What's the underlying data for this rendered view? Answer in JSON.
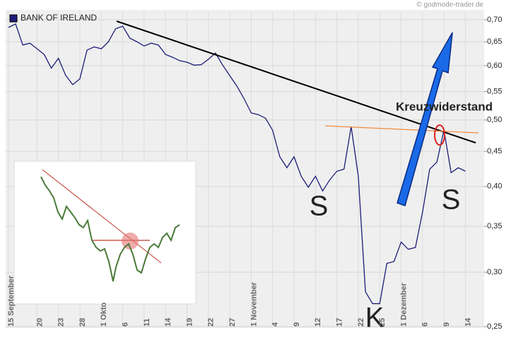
{
  "chart_data": {
    "type": "line",
    "source": "© godmode-trader.de",
    "categories": [
      "15 September",
      null,
      null,
      null,
      "20",
      null,
      null,
      "23",
      null,
      null,
      "28",
      null,
      null,
      "1 Okto",
      null,
      null,
      "6",
      null,
      null,
      "11",
      null,
      null,
      "14",
      null,
      null,
      "19",
      null,
      null,
      "22",
      null,
      null,
      "27",
      null,
      null,
      "1 November",
      null,
      null,
      "4",
      null,
      null,
      "9",
      null,
      null,
      "12",
      null,
      null,
      "17",
      null,
      null,
      "22",
      null,
      null,
      "25",
      null,
      null,
      "1 Dezember",
      null,
      null,
      "6",
      null,
      null,
      "9",
      null,
      null,
      "14"
    ],
    "series": [
      {
        "name": "BANK OF IRELAND",
        "color": "#1c1c78",
        "values": [
          0.682,
          0.69,
          0.643,
          0.647,
          0.635,
          0.623,
          0.595,
          0.615,
          0.581,
          0.563,
          0.574,
          0.632,
          0.639,
          0.635,
          0.65,
          0.679,
          0.685,
          0.658,
          0.65,
          0.641,
          0.647,
          0.643,
          0.623,
          0.617,
          0.61,
          0.607,
          0.601,
          0.602,
          0.613,
          0.626,
          0.601,
          0.58,
          0.56,
          0.537,
          0.512,
          0.509,
          0.503,
          0.483,
          0.442,
          0.426,
          0.442,
          0.414,
          0.399,
          0.414,
          0.394,
          0.409,
          0.421,
          0.424,
          0.489,
          0.414,
          0.281,
          0.27,
          0.27,
          0.309,
          0.311,
          0.332,
          0.324,
          0.326,
          0.367,
          0.424,
          0.434,
          0.483,
          0.419,
          0.426,
          0.421
        ]
      }
    ],
    "ylim": [
      0.25,
      0.72
    ],
    "log_scale": true,
    "grid": true,
    "yticks": [
      {
        "value": 0.25,
        "label": "0,25"
      },
      {
        "value": 0.3,
        "label": "0,30"
      },
      {
        "value": 0.35,
        "label": "0,35"
      },
      {
        "value": 0.4,
        "label": "0,40"
      },
      {
        "value": 0.45,
        "label": "0,45"
      },
      {
        "value": 0.5,
        "label": "0,50"
      },
      {
        "value": 0.55,
        "label": "0,55"
      },
      {
        "value": 0.6,
        "label": "0,60"
      },
      {
        "value": 0.65,
        "label": "0,65"
      },
      {
        "value": 0.7,
        "label": "0,70"
      }
    ],
    "annotations": [
      "Kreuzwiderstand",
      "S",
      "S",
      "K"
    ]
  }
}
